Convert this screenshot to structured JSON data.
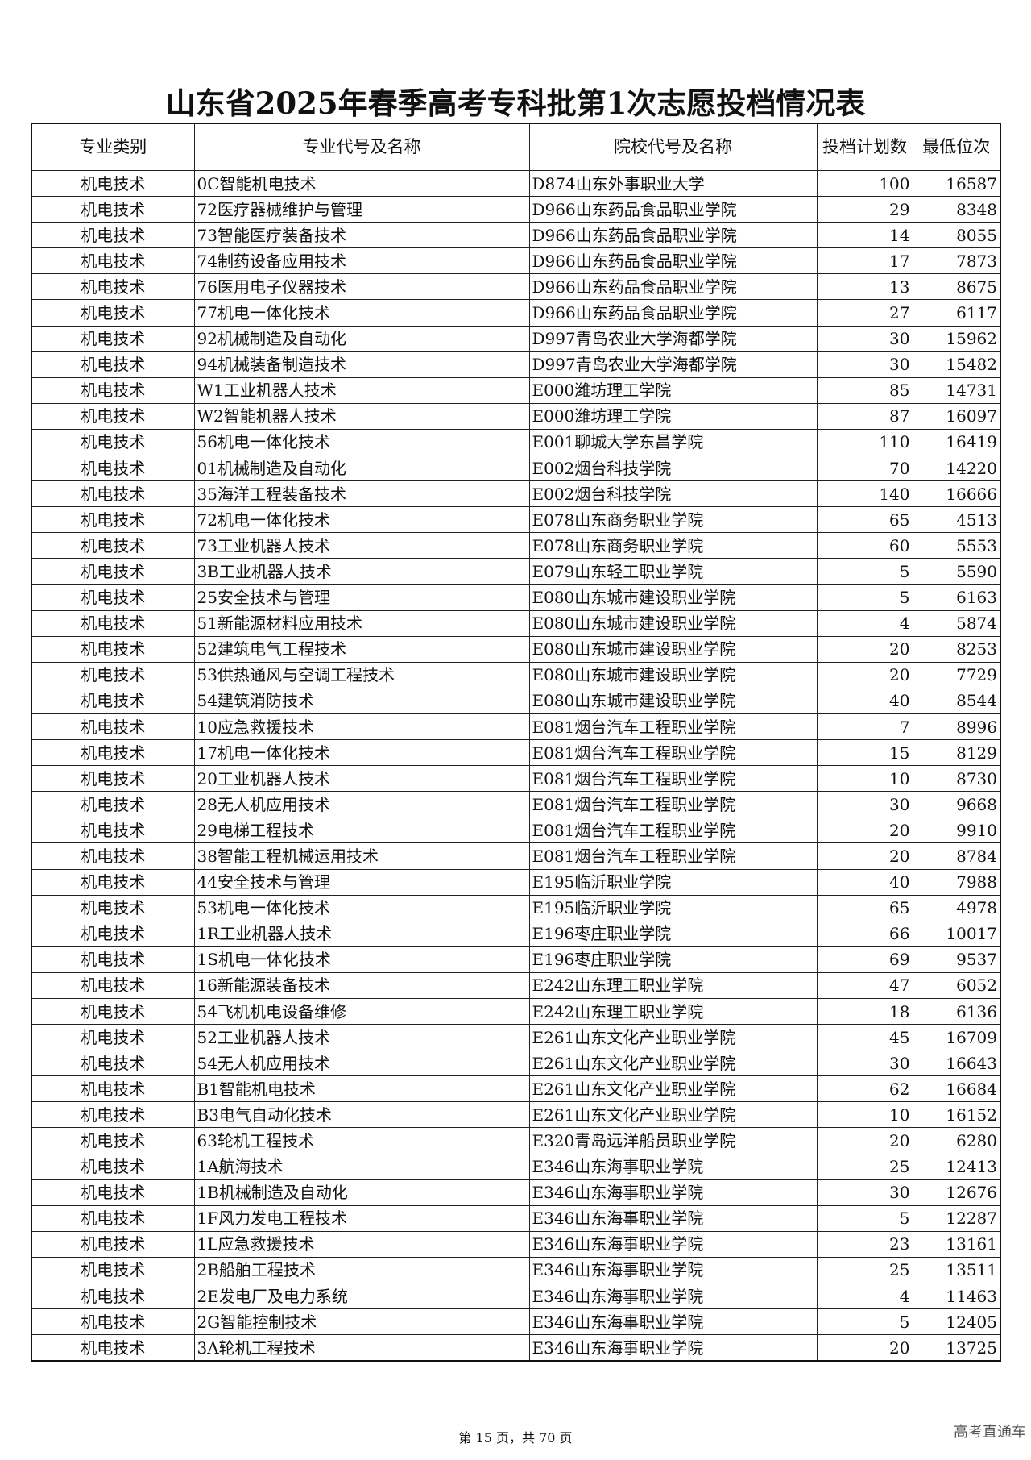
{
  "title": "山东省2025年春季高考专科批第1次志愿投档情况表",
  "columns": [
    "专业类别",
    "专业代号及名称",
    "院校代号及名称",
    "投档计划数",
    "最低位次"
  ],
  "rows": [
    [
      "机电技术",
      "0C智能机电技术",
      "D874山东外事职业大学",
      "100",
      "16587"
    ],
    [
      "机电技术",
      "72医疗器械维护与管理",
      "D966山东药品食品职业学院",
      "29",
      "8348"
    ],
    [
      "机电技术",
      "73智能医疗装备技术",
      "D966山东药品食品职业学院",
      "14",
      "8055"
    ],
    [
      "机电技术",
      "74制药设备应用技术",
      "D966山东药品食品职业学院",
      "17",
      "7873"
    ],
    [
      "机电技术",
      "76医用电子仪器技术",
      "D966山东药品食品职业学院",
      "13",
      "8675"
    ],
    [
      "机电技术",
      "77机电一体化技术",
      "D966山东药品食品职业学院",
      "27",
      "6117"
    ],
    [
      "机电技术",
      "92机械制造及自动化",
      "D997青岛农业大学海都学院",
      "30",
      "15962"
    ],
    [
      "机电技术",
      "94机械装备制造技术",
      "D997青岛农业大学海都学院",
      "30",
      "15482"
    ],
    [
      "机电技术",
      "W1工业机器人技术",
      "E000潍坊理工学院",
      "85",
      "14731"
    ],
    [
      "机电技术",
      "W2智能机器人技术",
      "E000潍坊理工学院",
      "87",
      "16097"
    ],
    [
      "机电技术",
      "56机电一体化技术",
      "E001聊城大学东昌学院",
      "110",
      "16419"
    ],
    [
      "机电技术",
      "01机械制造及自动化",
      "E002烟台科技学院",
      "70",
      "14220"
    ],
    [
      "机电技术",
      "35海洋工程装备技术",
      "E002烟台科技学院",
      "140",
      "16666"
    ],
    [
      "机电技术",
      "72机电一体化技术",
      "E078山东商务职业学院",
      "65",
      "4513"
    ],
    [
      "机电技术",
      "73工业机器人技术",
      "E078山东商务职业学院",
      "60",
      "5553"
    ],
    [
      "机电技术",
      "3B工业机器人技术",
      "E079山东轻工职业学院",
      "5",
      "5590"
    ],
    [
      "机电技术",
      "25安全技术与管理",
      "E080山东城市建设职业学院",
      "5",
      "6163"
    ],
    [
      "机电技术",
      "51新能源材料应用技术",
      "E080山东城市建设职业学院",
      "4",
      "5874"
    ],
    [
      "机电技术",
      "52建筑电气工程技术",
      "E080山东城市建设职业学院",
      "20",
      "8253"
    ],
    [
      "机电技术",
      "53供热通风与空调工程技术",
      "E080山东城市建设职业学院",
      "20",
      "7729"
    ],
    [
      "机电技术",
      "54建筑消防技术",
      "E080山东城市建设职业学院",
      "40",
      "8544"
    ],
    [
      "机电技术",
      "10应急救援技术",
      "E081烟台汽车工程职业学院",
      "7",
      "8996"
    ],
    [
      "机电技术",
      "17机电一体化技术",
      "E081烟台汽车工程职业学院",
      "15",
      "8129"
    ],
    [
      "机电技术",
      "20工业机器人技术",
      "E081烟台汽车工程职业学院",
      "10",
      "8730"
    ],
    [
      "机电技术",
      "28无人机应用技术",
      "E081烟台汽车工程职业学院",
      "30",
      "9668"
    ],
    [
      "机电技术",
      "29电梯工程技术",
      "E081烟台汽车工程职业学院",
      "20",
      "9910"
    ],
    [
      "机电技术",
      "38智能工程机械运用技术",
      "E081烟台汽车工程职业学院",
      "20",
      "8784"
    ],
    [
      "机电技术",
      "44安全技术与管理",
      "E195临沂职业学院",
      "40",
      "7988"
    ],
    [
      "机电技术",
      "53机电一体化技术",
      "E195临沂职业学院",
      "65",
      "4978"
    ],
    [
      "机电技术",
      "1R工业机器人技术",
      "E196枣庄职业学院",
      "66",
      "10017"
    ],
    [
      "机电技术",
      "1S机电一体化技术",
      "E196枣庄职业学院",
      "69",
      "9537"
    ],
    [
      "机电技术",
      "16新能源装备技术",
      "E242山东理工职业学院",
      "47",
      "6052"
    ],
    [
      "机电技术",
      "54飞机机电设备维修",
      "E242山东理工职业学院",
      "18",
      "6136"
    ],
    [
      "机电技术",
      "52工业机器人技术",
      "E261山东文化产业职业学院",
      "45",
      "16709"
    ],
    [
      "机电技术",
      "54无人机应用技术",
      "E261山东文化产业职业学院",
      "30",
      "16643"
    ],
    [
      "机电技术",
      "B1智能机电技术",
      "E261山东文化产业职业学院",
      "62",
      "16684"
    ],
    [
      "机电技术",
      "B3电气自动化技术",
      "E261山东文化产业职业学院",
      "10",
      "16152"
    ],
    [
      "机电技术",
      "63轮机工程技术",
      "E320青岛远洋船员职业学院",
      "20",
      "6280"
    ],
    [
      "机电技术",
      "1A航海技术",
      "E346山东海事职业学院",
      "25",
      "12413"
    ],
    [
      "机电技术",
      "1B机械制造及自动化",
      "E346山东海事职业学院",
      "30",
      "12676"
    ],
    [
      "机电技术",
      "1F风力发电工程技术",
      "E346山东海事职业学院",
      "5",
      "12287"
    ],
    [
      "机电技术",
      "1L应急救援技术",
      "E346山东海事职业学院",
      "23",
      "13161"
    ],
    [
      "机电技术",
      "2B船舶工程技术",
      "E346山东海事职业学院",
      "25",
      "13511"
    ],
    [
      "机电技术",
      "2E发电厂及电力系统",
      "E346山东海事职业学院",
      "4",
      "11463"
    ],
    [
      "机电技术",
      "2G智能控制技术",
      "E346山东海事职业学院",
      "5",
      "12405"
    ],
    [
      "机电技术",
      "3A轮机工程技术",
      "E346山东海事职业学院",
      "20",
      "13725"
    ]
  ],
  "footer": "第 15 页，共 70 页",
  "watermark": "高考直通车"
}
